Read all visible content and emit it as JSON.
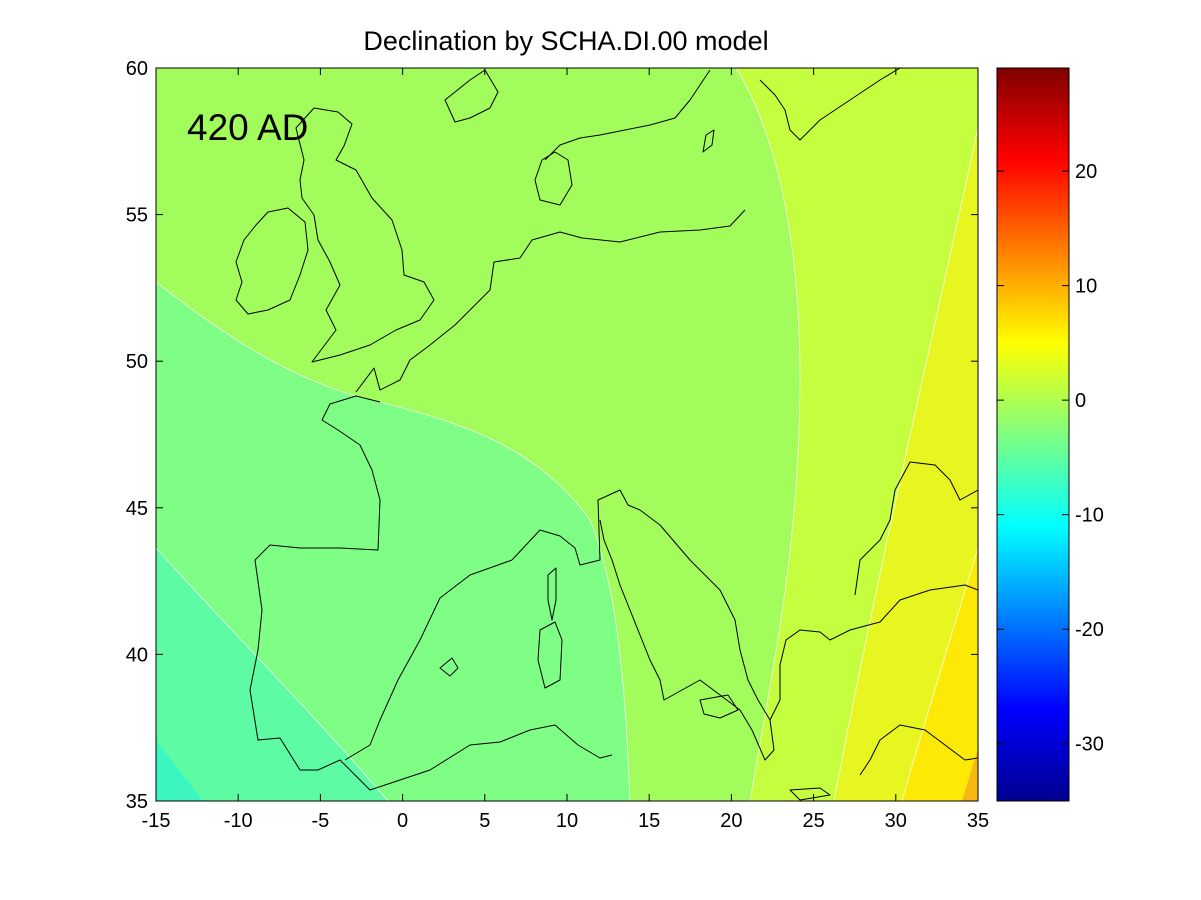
{
  "title": "Declination by SCHA.DI.00 model",
  "epoch_label": "420 AD",
  "map": {
    "xlim": [
      -15,
      35
    ],
    "ylim": [
      35,
      60
    ],
    "x_ticks": [
      -15,
      -10,
      -5,
      0,
      5,
      10,
      15,
      20,
      25,
      30,
      35
    ],
    "y_ticks": [
      35,
      40,
      45,
      50,
      55,
      60
    ],
    "region": "Europe and Mediterranean",
    "coastlines": "black"
  },
  "colorbar": {
    "colormap": "jet",
    "range": [
      -35,
      29
    ],
    "ticks": [
      -30,
      -20,
      -10,
      0,
      10,
      20
    ]
  },
  "chart_data": {
    "type": "heatmap",
    "title": "Declination by SCHA.DI.00 model",
    "annotation": "420 AD",
    "xlim": [
      -15,
      35
    ],
    "ylim": [
      35,
      60
    ],
    "clim": [
      -35,
      29
    ],
    "colormap": "jet",
    "contour_levels": [
      -6,
      -3,
      0,
      3,
      6
    ],
    "bands": [
      {
        "range": [
          -9,
          -6
        ],
        "color": "#5dfba3"
      },
      {
        "range": [
          -6,
          -3
        ],
        "color": "#7ffe86"
      },
      {
        "range": [
          -3,
          0
        ],
        "color": "#a2fc5c"
      },
      {
        "range": [
          0,
          3
        ],
        "color": "#c5fe3e"
      },
      {
        "range": [
          3,
          6
        ],
        "color": "#e7f620"
      },
      {
        "range": [
          6,
          9
        ],
        "color": "#fcea06"
      },
      {
        "range": [
          9,
          12
        ],
        "color": "#f7b814"
      }
    ]
  }
}
